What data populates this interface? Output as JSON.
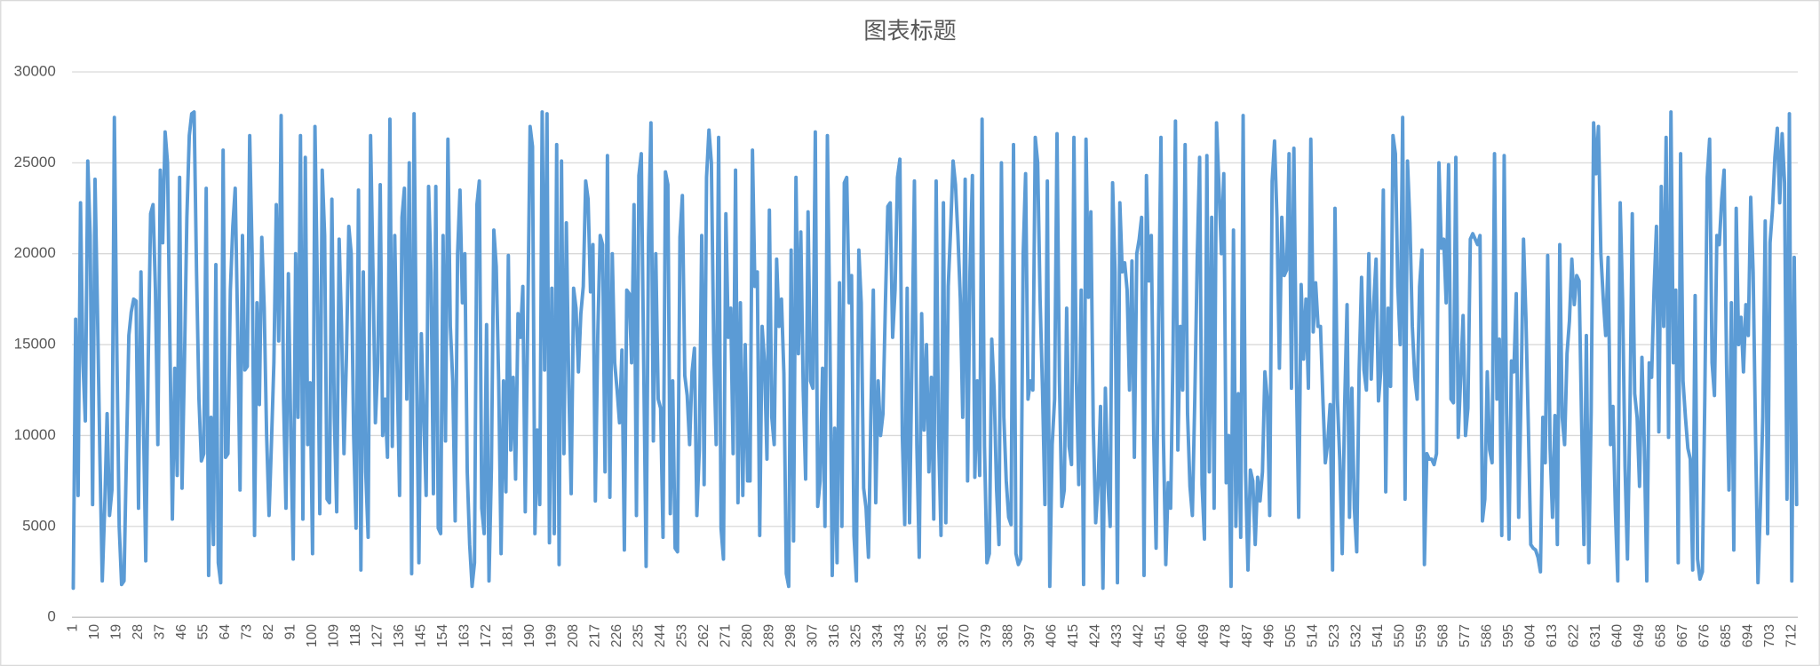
{
  "chart_data": {
    "type": "line",
    "title": "图表标题",
    "color": "#5b9bd5",
    "grid": true,
    "ylim": [
      0,
      30000
    ],
    "yticks": [
      0,
      5000,
      10000,
      15000,
      20000,
      25000,
      30000
    ],
    "categories": [
      "1",
      null,
      null,
      null,
      null,
      null,
      null,
      null,
      null,
      "10",
      null,
      null,
      null,
      null,
      null,
      null,
      null,
      null,
      "19",
      null,
      null,
      null,
      null,
      null,
      null,
      null,
      null,
      "28",
      null,
      null,
      null,
      null,
      null,
      null,
      null,
      null,
      "37",
      null,
      null,
      null,
      null,
      null,
      null,
      null,
      null,
      "46",
      null,
      null,
      null,
      null,
      null,
      null,
      null,
      null,
      "55",
      null,
      null,
      null,
      null,
      null,
      null,
      null,
      null,
      "64",
      null,
      null,
      null,
      null,
      null,
      null,
      null,
      null,
      "73",
      null,
      null,
      null,
      null,
      null,
      null,
      null,
      null,
      "82",
      null,
      null,
      null,
      null,
      null,
      null,
      null,
      null,
      "91",
      null,
      null,
      null,
      null,
      null,
      null,
      null,
      null,
      "100",
      null,
      null,
      null,
      null,
      null,
      null,
      null,
      null,
      "109",
      null,
      null,
      null,
      null,
      null,
      null,
      null,
      null,
      "118",
      null,
      null,
      null,
      null,
      null,
      null,
      null,
      null,
      "127",
      null,
      null,
      null,
      null,
      null,
      null,
      null,
      null,
      "136",
      null,
      null,
      null,
      null,
      null,
      null,
      null,
      null,
      "145",
      null,
      null,
      null,
      null,
      null,
      null,
      null,
      null,
      "154",
      null,
      null,
      null,
      null,
      null,
      null,
      null,
      null,
      "163",
      null,
      null,
      null,
      null,
      null,
      null,
      null,
      null,
      "172",
      null,
      null,
      null,
      null,
      null,
      null,
      null,
      null,
      "181",
      null,
      null,
      null,
      null,
      null,
      null,
      null,
      null,
      "190",
      null,
      null,
      null,
      null,
      null,
      null,
      null,
      null,
      "199",
      null,
      null,
      null,
      null,
      null,
      null,
      null,
      null,
      "208",
      null,
      null,
      null,
      null,
      null,
      null,
      null,
      null,
      "217",
      null,
      null,
      null,
      null,
      null,
      null,
      null,
      null,
      "226",
      null,
      null,
      null,
      null,
      null,
      null,
      null,
      null,
      "235",
      null,
      null,
      null,
      null,
      null,
      null,
      null,
      null,
      "244",
      null,
      null,
      null,
      null,
      null,
      null,
      null,
      null,
      "253",
      null,
      null,
      null,
      null,
      null,
      null,
      null,
      null,
      "262",
      null,
      null,
      null,
      null,
      null,
      null,
      null,
      null,
      "271",
      null,
      null,
      null,
      null,
      null,
      null,
      null,
      null,
      "280",
      null,
      null,
      null,
      null,
      null,
      null,
      null,
      null,
      "289",
      null,
      null,
      null,
      null,
      null,
      null,
      null,
      null,
      "298",
      null,
      null,
      null,
      null,
      null,
      null,
      null,
      null,
      "307",
      null,
      null,
      null,
      null,
      null,
      null,
      null,
      null,
      "316",
      null,
      null,
      null,
      null,
      null,
      null,
      null,
      null,
      "325",
      null,
      null,
      null,
      null,
      null,
      null,
      null,
      null,
      "334",
      null,
      null,
      null,
      null,
      null,
      null,
      null,
      null,
      "343",
      null,
      null,
      null,
      null,
      null,
      null,
      null,
      null,
      "352",
      null,
      null,
      null,
      null,
      null,
      null,
      null,
      null,
      "361",
      null,
      null,
      null,
      null,
      null,
      null,
      null,
      null,
      "370",
      null,
      null,
      null,
      null,
      null,
      null,
      null,
      null,
      "379",
      null,
      null,
      null,
      null,
      null,
      null,
      null,
      null,
      "388",
      null,
      null,
      null,
      null,
      null,
      null,
      null,
      null,
      "397",
      null,
      null,
      null,
      null,
      null,
      null,
      null,
      null,
      "406",
      null,
      null,
      null,
      null,
      null,
      null,
      null,
      null,
      "415",
      null,
      null,
      null,
      null,
      null,
      null,
      null,
      null,
      "424",
      null,
      null,
      null,
      null,
      null,
      null,
      null,
      null,
      "433",
      null,
      null,
      null,
      null,
      null,
      null,
      null,
      null,
      "442",
      null,
      null,
      null,
      null,
      null,
      null,
      null,
      null,
      "451",
      null,
      null,
      null,
      null,
      null,
      null,
      null,
      null,
      "460",
      null,
      null,
      null,
      null,
      null,
      null,
      null,
      null,
      "469",
      null,
      null,
      null,
      null,
      null,
      null,
      null,
      null,
      "478",
      null,
      null,
      null,
      null,
      null,
      null,
      null,
      null,
      "487",
      null,
      null,
      null,
      null,
      null,
      null,
      null,
      null,
      "496",
      null,
      null,
      null,
      null,
      null,
      null,
      null,
      null,
      "505",
      null,
      null,
      null,
      null,
      null,
      null,
      null,
      null,
      "514",
      null,
      null,
      null,
      null,
      null,
      null,
      null,
      null,
      "523",
      null,
      null,
      null,
      null,
      null,
      null,
      null,
      null,
      "532",
      null,
      null,
      null,
      null,
      null,
      null,
      null,
      null,
      "541",
      null,
      null,
      null,
      null,
      null,
      null,
      null,
      null,
      "550",
      null,
      null,
      null,
      null,
      null,
      null,
      null,
      null,
      "559",
      null,
      null,
      null,
      null,
      null,
      null,
      null,
      null,
      "568",
      null,
      null,
      null,
      null,
      null,
      null,
      null,
      null,
      "577",
      null,
      null,
      null,
      null,
      null,
      null,
      null,
      null,
      "586",
      null,
      null,
      null,
      null,
      null,
      null,
      null,
      null,
      "595",
      null,
      null,
      null,
      null,
      null,
      null,
      null,
      null,
      "604",
      null,
      null,
      null,
      null,
      null,
      null,
      null,
      null,
      "613",
      null,
      null,
      null,
      null,
      null,
      null,
      null,
      null,
      "622",
      null,
      null,
      null,
      null,
      null,
      null,
      null,
      null,
      "631",
      null,
      null,
      null,
      null,
      null,
      null,
      null,
      null,
      "640",
      null,
      null,
      null,
      null,
      null,
      null,
      null,
      null,
      "649",
      null,
      null,
      null,
      null,
      null,
      null,
      null,
      null,
      "658",
      null,
      null,
      null,
      null,
      null,
      null,
      null,
      null,
      "667",
      null,
      null,
      null,
      null,
      null,
      null,
      null,
      null,
      "676",
      null,
      null,
      null,
      null,
      null,
      null,
      null,
      null,
      "685",
      null,
      null,
      null,
      null,
      null,
      null,
      null,
      null,
      "694",
      null,
      null,
      null,
      null,
      null,
      null,
      null,
      null,
      "703",
      null,
      null,
      null,
      null,
      null,
      null,
      null,
      null,
      "712",
      null,
      null
    ],
    "values": [
      1600,
      16400,
      6700,
      22800,
      14000,
      10800,
      25100,
      21000,
      6200,
      24100,
      17000,
      9000,
      2000,
      6000,
      11200,
      5600,
      7000,
      27500,
      15000,
      5000,
      1800,
      2000,
      9000,
      15500,
      16800,
      17500,
      17400,
      6000,
      19000,
      11000,
      3100,
      14000,
      22200,
      22700,
      18000,
      9500,
      24600,
      20600,
      26700,
      25000,
      15000,
      5400,
      13700,
      7800,
      24200,
      7100,
      14000,
      22000,
      26500,
      27700,
      27800,
      19000,
      12000,
      8600,
      9000,
      23600,
      2300,
      11000,
      4000,
      19400,
      3000,
      1900,
      25700,
      8800,
      9000,
      18000,
      21500,
      23600,
      16000,
      7000,
      21000,
      13600,
      13800,
      26500,
      20000,
      4500,
      17300,
      11700,
      20900,
      17000,
      10000,
      5600,
      9600,
      14000,
      22700,
      15200,
      27600,
      12000,
      6000,
      18900,
      10000,
      3200,
      20000,
      11000,
      26500,
      5400,
      25300,
      9500,
      12900,
      3500,
      27000,
      18000,
      5700,
      24600,
      21000,
      6500,
      6300,
      23000,
      11000,
      5800,
      20800,
      16000,
      9000,
      14200,
      21500,
      20000,
      10000,
      4900,
      23500,
      2600,
      19000,
      8000,
      4400,
      26500,
      19000,
      10700,
      14000,
      23800,
      10000,
      12000,
      8800,
      27400,
      9400,
      21000,
      13600,
      6700,
      22000,
      23600,
      12000,
      25000,
      2400,
      27700,
      14000,
      3000,
      15600,
      11000,
      6700,
      23700,
      19000,
      6800,
      23700,
      4900,
      4600,
      21000,
      9700,
      26300,
      16000,
      13000,
      5300,
      20000,
      23500,
      17300,
      20000,
      8000,
      4000,
      1700,
      3000,
      22700,
      24000,
      6000,
      4600,
      16100,
      2000,
      8200,
      21300,
      19300,
      13000,
      3500,
      13000,
      6900,
      19900,
      9200,
      13200,
      7600,
      16700,
      15400,
      18200,
      5800,
      16000,
      27000,
      25900,
      4600,
      10300,
      6200,
      27800,
      13600,
      27700,
      4100,
      18100,
      4600,
      26000,
      2900,
      25100,
      9000,
      21700,
      12800,
      6800,
      18100,
      17000,
      13500,
      16700,
      18200,
      24000,
      23000,
      17900,
      20500,
      6400,
      15500,
      21000,
      20500,
      8000,
      25400,
      6600,
      20000,
      14000,
      12500,
      10700,
      14700,
      3700,
      18000,
      17800,
      14000,
      22700,
      5600,
      24300,
      25500,
      14000,
      2800,
      20900,
      27200,
      9700,
      20000,
      12000,
      11500,
      4400,
      24500,
      23800,
      5700,
      13000,
      3800,
      3600,
      20900,
      23200,
      13300,
      12200,
      9500,
      13500,
      14800,
      5600,
      9200,
      21000,
      7300,
      24200,
      26800,
      25000,
      14600,
      9500,
      26400,
      4900,
      3200,
      22200,
      15400,
      17000,
      9000,
      24600,
      6300,
      17300,
      6700,
      15000,
      7500,
      7500,
      25700,
      18200,
      19000,
      4500,
      16000,
      14000,
      8700,
      22400,
      11000,
      9500,
      19700,
      16000,
      17500,
      13400,
      2400,
      1700,
      20200,
      4200,
      24200,
      14500,
      21200,
      12500,
      7600,
      22300,
      13000,
      12600,
      26700,
      6100,
      7500,
      13700,
      5000,
      26500,
      16000,
      2300,
      10400,
      3000,
      18400,
      5000,
      23900,
      24200,
      17300,
      18800,
      4500,
      2000,
      20200,
      17300,
      7100,
      6000,
      3300,
      11200,
      18000,
      6300,
      13000,
      10000,
      11200,
      17300,
      22600,
      22800,
      15400,
      18000,
      24200,
      25200,
      10000,
      5100,
      18100,
      5200,
      14300,
      24000,
      9500,
      3300,
      16700,
      10300,
      15000,
      8000,
      13200,
      5400,
      24000,
      10000,
      4500,
      22800,
      5200,
      18200,
      21400,
      25100,
      23800,
      21000,
      17500,
      11000,
      24100,
      7500,
      19000,
      24300,
      7700,
      13000,
      7800,
      27400,
      9400,
      3000,
      3500,
      15300,
      12500,
      7000,
      4000,
      25000,
      11000,
      7500,
      5500,
      5100,
      26000,
      3500,
      2900,
      3200,
      20000,
      24400,
      12000,
      13000,
      12500,
      26400,
      25000,
      17500,
      12500,
      6200,
      24000,
      1700,
      9500,
      12000,
      26600,
      13000,
      6100,
      7000,
      17000,
      9400,
      8400,
      26400,
      13000,
      7300,
      18000,
      1800,
      26300,
      17600,
      22300,
      10500,
      5200,
      7300,
      11600,
      1600,
      12600,
      7500,
      5000,
      23900,
      19000,
      1900,
      22800,
      19000,
      19500,
      18000,
      12500,
      19600,
      8800,
      20000,
      20800,
      22000,
      2300,
      24300,
      18500,
      21000,
      10000,
      3800,
      16000,
      26400,
      10000,
      2900,
      7400,
      6000,
      14600,
      27300,
      9200,
      16000,
      12500,
      26000,
      11200,
      7200,
      5600,
      12000,
      19700,
      25300,
      7300,
      4300,
      25400,
      8000,
      22000,
      6000,
      27200,
      23700,
      20000,
      24400,
      7400,
      10000,
      1700,
      21300,
      5000,
      12300,
      4400,
      27600,
      8000,
      2600,
      8100,
      7500,
      4000,
      7700,
      6400,
      8000,
      13500,
      12000,
      5600,
      24000,
      26200,
      22000,
      13700,
      22000,
      18800,
      19100,
      25500,
      12600,
      25800,
      13600,
      5500,
      18300,
      14200,
      17500,
      12600,
      26300,
      15700,
      18400,
      16000,
      16000,
      12000,
      8500,
      9600,
      11700,
      2600,
      22500,
      12000,
      8600,
      3500,
      11700,
      17200,
      5500,
      12600,
      6000,
      3600,
      13600,
      18700,
      13600,
      12500,
      20000,
      13100,
      17200,
      19700,
      11900,
      13600,
      23500,
      6900,
      17000,
      12700,
      26500,
      25500,
      18200,
      15000,
      27500,
      6500,
      25100,
      21700,
      16000,
      13200,
      12000,
      18200,
      20200,
      2900,
      9000,
      8700,
      8700,
      8400,
      9000,
      25000,
      20300,
      20800,
      17300,
      24900,
      12000,
      11800,
      25300,
      9900,
      13200,
      16600,
      10000,
      11500,
      20800,
      21100,
      20800,
      20500,
      21000,
      5300,
      6500,
      13500,
      9200,
      8500,
      25500,
      12000,
      15300,
      4500,
      25400,
      11200,
      4300,
      14100,
      13500,
      17800,
      5500,
      12400,
      20800,
      16500,
      10500,
      4000,
      3800,
      3700,
      3300,
      2500,
      11000,
      8500,
      19900,
      9300,
      5500,
      11100,
      4000,
      20500,
      11000,
      9500,
      14500,
      16300,
      19700,
      17200,
      18800,
      18500,
      11000,
      4000,
      15500,
      3000,
      11300,
      27200,
      24400,
      27000,
      20000,
      17500,
      15500,
      19800,
      9500,
      11600,
      5900,
      2000,
      22800,
      17400,
      8300,
      3200,
      11000,
      22200,
      12300,
      11000,
      7200,
      14300,
      9300,
      2000,
      14000,
      13200,
      18000,
      21500,
      10200,
      23700,
      16000,
      26400,
      9900,
      27800,
      14000,
      18000,
      3000,
      25500,
      13000,
      11000,
      9300,
      8700,
      2600,
      17700,
      3200,
      2100,
      2500,
      12000,
      24200,
      26300,
      14000,
      12200,
      21000,
      20500,
      23000,
      24600,
      14000,
      7000,
      17300,
      3700,
      22500,
      15000,
      16500,
      13500,
      17200,
      15500,
      23100,
      19000,
      10000,
      1900,
      6100,
      11000,
      21800,
      4600,
      20600,
      22400,
      25300,
      26900,
      22800,
      26600,
      23900,
      6500,
      27700,
      2000,
      19800,
      6200
    ]
  }
}
